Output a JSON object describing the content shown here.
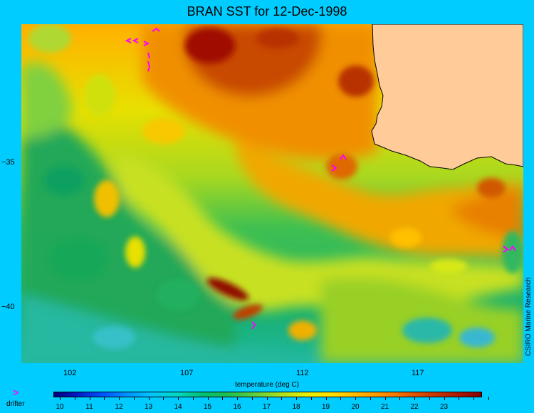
{
  "title": "BRAN SST for 12-Dec-1998",
  "map": {
    "lon_ticks": [
      "102",
      "107",
      "112",
      "117"
    ],
    "lat_ticks": [
      "−35",
      "−40"
    ],
    "credit": "CSIRO Marine Research",
    "land_color": "#ffcc99",
    "drifter_color": "#ff00ff",
    "drifters": [
      "drifter-1",
      "drifter-2",
      "drifter-3",
      "drifter-4",
      "drifter-5"
    ]
  },
  "colorbar": {
    "title": "temperature (deg C)",
    "labels": [
      "10",
      "11",
      "12",
      "13",
      "14",
      "15",
      "16",
      "17",
      "18",
      "19",
      "20",
      "21",
      "22",
      "23"
    ],
    "colors": {
      "cold": "#000080",
      "mid": "#60d040",
      "warm": "#800000"
    }
  },
  "legend": {
    "marker": ">",
    "label": "drifter"
  },
  "background_color": "#00ccff"
}
